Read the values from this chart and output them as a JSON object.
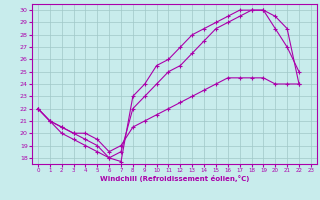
{
  "xlabel": "Windchill (Refroidissement éolien,°C)",
  "bg_color": "#c8ecec",
  "line_color": "#aa00aa",
  "grid_color": "#a0c8c8",
  "xlim": [
    -0.5,
    23.5
  ],
  "ylim": [
    17.5,
    30.5
  ],
  "xticks": [
    0,
    1,
    2,
    3,
    4,
    5,
    6,
    7,
    8,
    9,
    10,
    11,
    12,
    13,
    14,
    15,
    16,
    17,
    18,
    19,
    20,
    21,
    22,
    23
  ],
  "yticks": [
    18,
    19,
    20,
    21,
    22,
    23,
    24,
    25,
    26,
    27,
    28,
    29,
    30
  ],
  "curve1_x": [
    0,
    1,
    2,
    3,
    4,
    5,
    6,
    7,
    8,
    9,
    10,
    11,
    12,
    13,
    14,
    15,
    16,
    17,
    18,
    19,
    20,
    21,
    22
  ],
  "curve1_y": [
    22.0,
    21.0,
    20.5,
    20.0,
    19.5,
    19.0,
    18.0,
    17.7,
    23.0,
    24.0,
    25.5,
    26.0,
    27.0,
    28.0,
    28.5,
    29.0,
    29.5,
    30.0,
    30.0,
    30.0,
    29.5,
    28.5,
    24.0
  ],
  "curve2_x": [
    0,
    1,
    2,
    3,
    4,
    5,
    6,
    7,
    8,
    9,
    10,
    11,
    12,
    13,
    14,
    15,
    16,
    17,
    18,
    19,
    20,
    21,
    22
  ],
  "curve2_y": [
    22.0,
    21.0,
    20.0,
    19.5,
    19.0,
    18.5,
    18.0,
    18.5,
    22.0,
    23.0,
    24.0,
    25.0,
    25.5,
    26.5,
    27.5,
    28.5,
    29.0,
    29.5,
    30.0,
    30.0,
    28.5,
    27.0,
    25.0
  ],
  "curve3_x": [
    0,
    1,
    2,
    3,
    4,
    5,
    6,
    7,
    8,
    9,
    10,
    11,
    12,
    13,
    14,
    15,
    16,
    17,
    18,
    19,
    20,
    21,
    22
  ],
  "curve3_y": [
    22.0,
    21.0,
    20.5,
    20.0,
    20.0,
    19.5,
    18.5,
    19.0,
    20.5,
    21.0,
    21.5,
    22.0,
    22.5,
    23.0,
    23.5,
    24.0,
    24.5,
    24.5,
    24.5,
    24.5,
    24.0,
    24.0,
    24.0
  ]
}
